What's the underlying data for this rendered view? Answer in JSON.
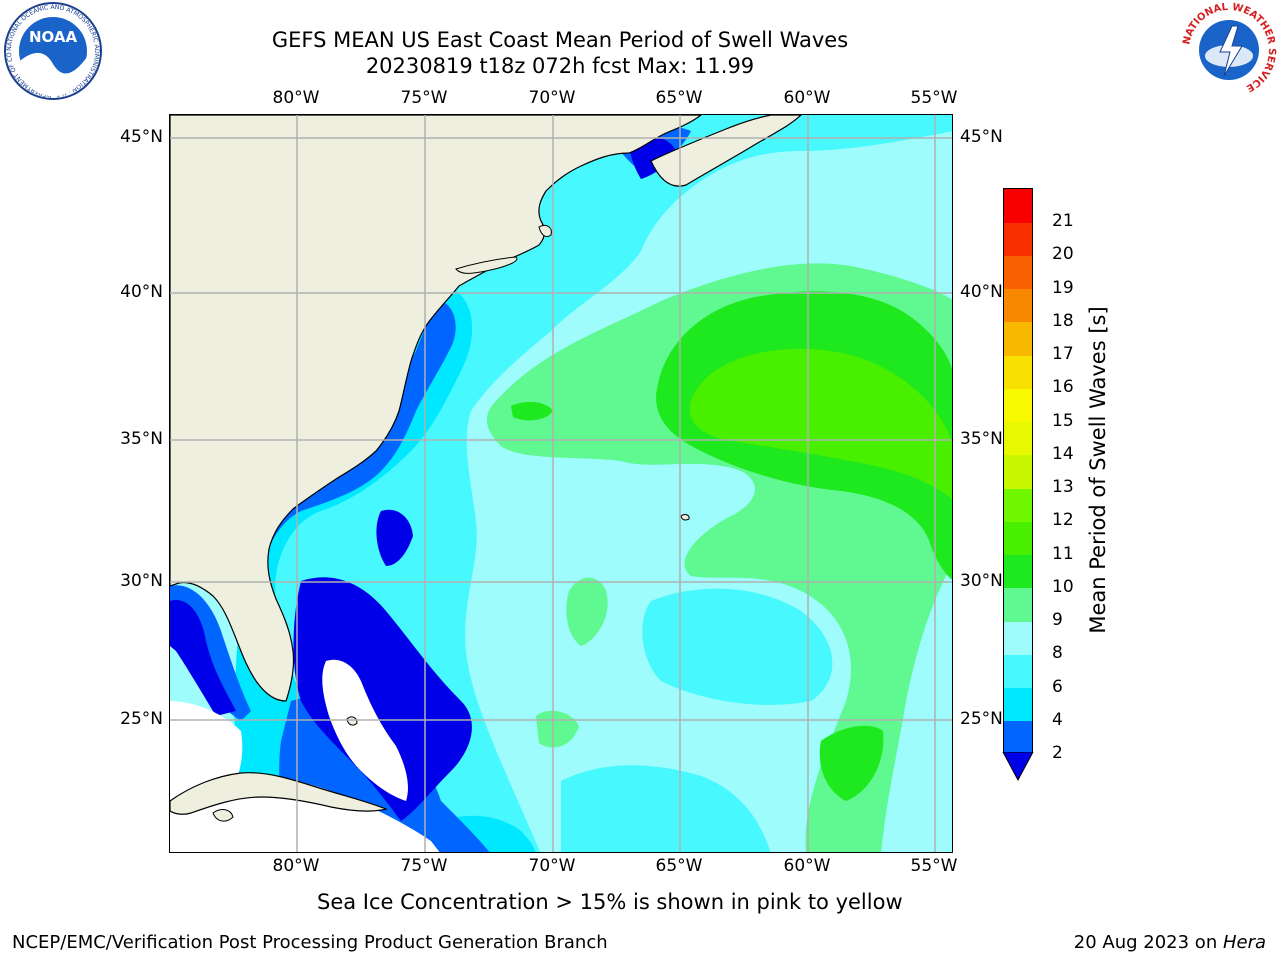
{
  "title": {
    "line1": "GEFS MEAN US East Coast Mean Period of Swell Waves",
    "line2": "20230819 t18z 072h fcst   Max: 11.99"
  },
  "map": {
    "lon_labels": [
      "80°W",
      "75°W",
      "70°W",
      "65°W",
      "60°W",
      "55°W"
    ],
    "lat_labels": [
      "45°N",
      "40°N",
      "35°N",
      "30°N",
      "25°N"
    ],
    "land_color": "#efefdf",
    "graticule_color": "#b0b0b0"
  },
  "colorbar": {
    "title": "Mean Period of Swell Waves [s]",
    "ticks": [
      "2",
      "4",
      "6",
      "8",
      "9",
      "10",
      "11",
      "12",
      "13",
      "14",
      "15",
      "16",
      "17",
      "18",
      "19",
      "20",
      "21"
    ],
    "colors": [
      "#0066ff",
      "#00e8ff",
      "#48f8ff",
      "#9ffcfc",
      "#60f890",
      "#1ee81e",
      "#48f000",
      "#70f800",
      "#c8f800",
      "#e8f800",
      "#f8f800",
      "#f8e000",
      "#f8b800",
      "#f88800",
      "#f86000",
      "#f83000",
      "#f80000"
    ],
    "extend_color": "#0000e8"
  },
  "note": "Sea Ice Concentration > 15% is shown in pink to yellow",
  "footer": {
    "left": "NCEP/EMC/Verification Post Processing Product Generation Branch",
    "date": "20 Aug 2023 on ",
    "machine": "Hera"
  },
  "logos": {
    "noaa": "NOAA",
    "noaa_ring": "NATIONAL OCEANIC AND ATMOSPHERIC ADMINISTRATION · U.S. DEPARTMENT OF COMMERCE",
    "nws_ring": "NATIONAL WEATHER SERVICE"
  }
}
